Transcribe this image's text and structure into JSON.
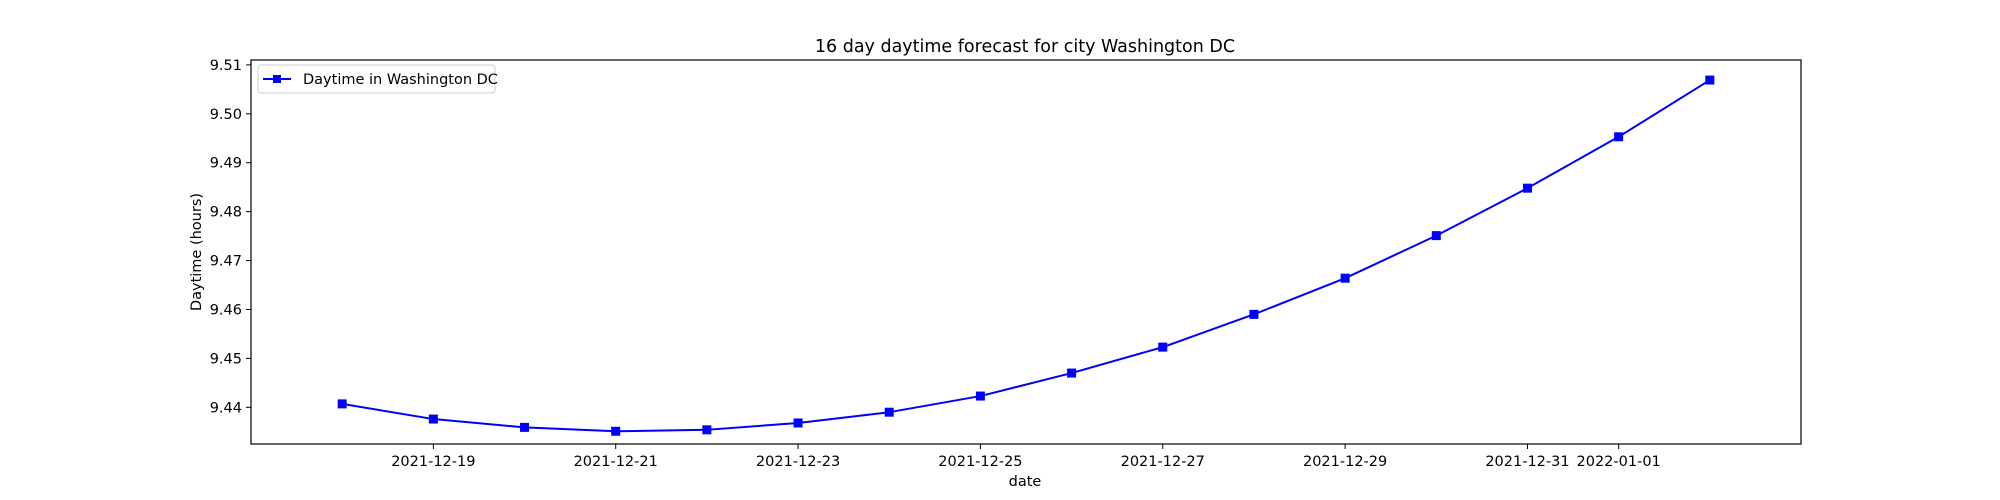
{
  "chart_data": {
    "type": "line",
    "title": "16 day daytime forecast for city Washington DC",
    "xlabel": "date",
    "ylabel": "Daytime (hours)",
    "x": [
      "2021-12-18",
      "2021-12-19",
      "2021-12-20",
      "2021-12-21",
      "2021-12-22",
      "2021-12-23",
      "2021-12-24",
      "2021-12-25",
      "2021-12-26",
      "2021-12-27",
      "2021-12-28",
      "2021-12-29",
      "2021-12-30",
      "2021-12-31",
      "2022-01-01",
      "2022-01-02"
    ],
    "x_ticks": [
      "2021-12-19",
      "2021-12-21",
      "2021-12-23",
      "2021-12-25",
      "2021-12-27",
      "2021-12-29",
      "2021-12-31",
      "2022-01-01"
    ],
    "xlim": [
      "2021-12-17",
      "2022-01-03"
    ],
    "ylim": [
      9.4325,
      9.511
    ],
    "y_ticks": [
      "9.44",
      "9.45",
      "9.46",
      "9.47",
      "9.48",
      "9.49",
      "9.50",
      "9.51"
    ],
    "grid": false,
    "legend_position": "upper-left",
    "series": [
      {
        "name": "Daytime in Washington DC",
        "color": "#0000ff",
        "marker": "square",
        "values": [
          9.4407,
          9.4376,
          9.4359,
          9.4351,
          9.4354,
          9.4368,
          9.439,
          9.4423,
          9.447,
          9.4523,
          9.459,
          9.4664,
          9.4751,
          9.4848,
          9.4953,
          9.5069
        ]
      }
    ]
  }
}
